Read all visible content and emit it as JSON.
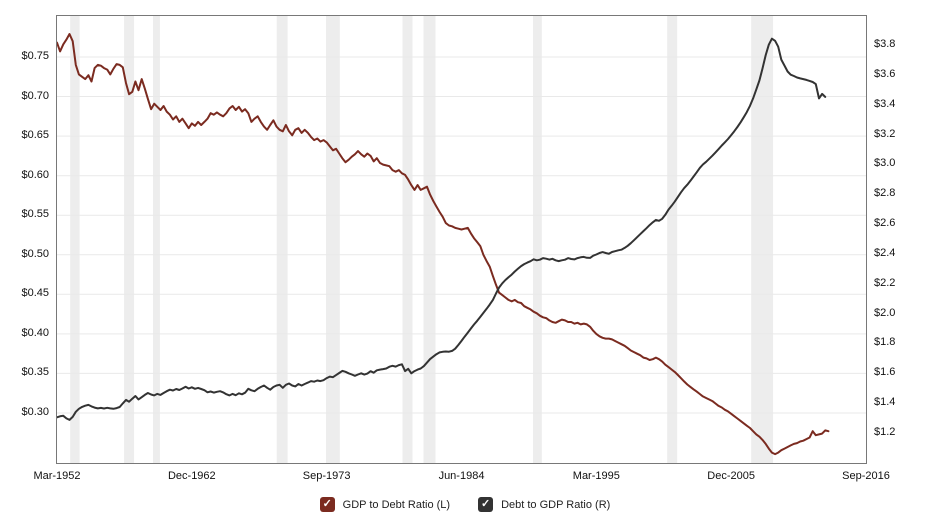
{
  "chart_data": {
    "type": "line",
    "title": "",
    "legend_position": "bottom-center",
    "grid": "horizontal-only",
    "background_color": "#ffffff",
    "grid_color": "#e9e9e9",
    "recession_band_color": "#ededed",
    "plot_border_color": "#787878",
    "x_axis": {
      "range": [
        1952.25,
        2016.75
      ],
      "tick_labels": [
        "Mar-1952",
        "Dec-1962",
        "Sep-1973",
        "Jun-1984",
        "Mar-1995",
        "Dec-2005",
        "Sep-2016"
      ],
      "tick_years": [
        1952.25,
        1963.0,
        1973.75,
        1984.5,
        1995.25,
        2006.0,
        2016.75
      ]
    },
    "left_axis": {
      "range": [
        0.2368,
        0.8018
      ],
      "tick_values": [
        0.3,
        0.35,
        0.4,
        0.45,
        0.5,
        0.55,
        0.6,
        0.65,
        0.7,
        0.75
      ],
      "tick_labels": [
        "$0.30",
        "$0.35",
        "$0.40",
        "$0.45",
        "$0.50",
        "$0.55",
        "$0.60",
        "$0.65",
        "$0.70",
        "$0.75"
      ]
    },
    "right_axis": {
      "range": [
        0.999,
        3.994
      ],
      "tick_values": [
        1.2,
        1.4,
        1.6,
        1.8,
        2.0,
        2.2,
        2.4,
        2.6,
        2.8,
        3.0,
        3.2,
        3.4,
        3.6,
        3.8
      ],
      "tick_labels": [
        "$1.2",
        "$1.4",
        "$1.6",
        "$1.8",
        "$2.0",
        "$2.2",
        "$2.4",
        "$2.6",
        "$2.8",
        "$3.0",
        "$3.2",
        "$3.4",
        "$3.6",
        "$3.8"
      ]
    },
    "recession_bands": [
      [
        1953.3,
        1954.05
      ],
      [
        1957.6,
        1958.4
      ],
      [
        1959.9,
        1960.45
      ],
      [
        1969.77,
        1970.64
      ],
      [
        1973.7,
        1974.8
      ],
      [
        1979.8,
        1980.6
      ],
      [
        1981.47,
        1982.43
      ],
      [
        1990.2,
        1990.9
      ],
      [
        2000.9,
        2001.7
      ],
      [
        2007.6,
        2009.35
      ]
    ],
    "series": [
      {
        "name": "GDP to Debt Ratio (L)",
        "axis": "left",
        "color": "#7b2b20",
        "line_width": 2,
        "start_year": 1952.25,
        "step_years": 0.25,
        "values": [
          0.768,
          0.757,
          0.766,
          0.772,
          0.779,
          0.77,
          0.74,
          0.728,
          0.725,
          0.722,
          0.727,
          0.719,
          0.736,
          0.74,
          0.739,
          0.736,
          0.734,
          0.728,
          0.735,
          0.741,
          0.74,
          0.737,
          0.717,
          0.703,
          0.706,
          0.719,
          0.708,
          0.722,
          0.71,
          0.697,
          0.684,
          0.691,
          0.687,
          0.683,
          0.688,
          0.681,
          0.677,
          0.671,
          0.675,
          0.668,
          0.672,
          0.666,
          0.66,
          0.666,
          0.663,
          0.668,
          0.664,
          0.668,
          0.672,
          0.679,
          0.677,
          0.68,
          0.677,
          0.675,
          0.679,
          0.685,
          0.688,
          0.683,
          0.687,
          0.681,
          0.684,
          0.679,
          0.668,
          0.672,
          0.675,
          0.668,
          0.662,
          0.658,
          0.664,
          0.67,
          0.662,
          0.658,
          0.656,
          0.664,
          0.656,
          0.651,
          0.658,
          0.66,
          0.654,
          0.658,
          0.654,
          0.649,
          0.645,
          0.647,
          0.643,
          0.645,
          0.642,
          0.637,
          0.632,
          0.634,
          0.628,
          0.622,
          0.617,
          0.62,
          0.624,
          0.627,
          0.631,
          0.627,
          0.624,
          0.628,
          0.625,
          0.618,
          0.622,
          0.616,
          0.614,
          0.613,
          0.612,
          0.607,
          0.605,
          0.607,
          0.603,
          0.601,
          0.595,
          0.588,
          0.582,
          0.588,
          0.582,
          0.584,
          0.586,
          0.576,
          0.568,
          0.561,
          0.554,
          0.548,
          0.54,
          0.537,
          0.536,
          0.534,
          0.533,
          0.532,
          0.533,
          0.534,
          0.527,
          0.521,
          0.516,
          0.511,
          0.5,
          0.492,
          0.485,
          0.473,
          0.462,
          0.452,
          0.449,
          0.446,
          0.443,
          0.441,
          0.443,
          0.44,
          0.439,
          0.435,
          0.433,
          0.431,
          0.428,
          0.426,
          0.423,
          0.421,
          0.42,
          0.417,
          0.415,
          0.414,
          0.416,
          0.418,
          0.417,
          0.415,
          0.415,
          0.413,
          0.414,
          0.412,
          0.413,
          0.412,
          0.409,
          0.404,
          0.4,
          0.397,
          0.395,
          0.394,
          0.394,
          0.393,
          0.391,
          0.389,
          0.387,
          0.385,
          0.382,
          0.379,
          0.377,
          0.375,
          0.373,
          0.37,
          0.369,
          0.367,
          0.368,
          0.37,
          0.368,
          0.365,
          0.361,
          0.358,
          0.355,
          0.352,
          0.348,
          0.344,
          0.34,
          0.336,
          0.333,
          0.33,
          0.327,
          0.324,
          0.321,
          0.319,
          0.317,
          0.315,
          0.312,
          0.309,
          0.307,
          0.304,
          0.302,
          0.299,
          0.296,
          0.293,
          0.29,
          0.287,
          0.284,
          0.281,
          0.277,
          0.273,
          0.27,
          0.266,
          0.261,
          0.255,
          0.25,
          0.248,
          0.25,
          0.253,
          0.255,
          0.257,
          0.259,
          0.261,
          0.262,
          0.264,
          0.265,
          0.267,
          0.269,
          0.277,
          0.272,
          0.273,
          0.274,
          0.278,
          0.277
        ]
      },
      {
        "name": "Debt to GDP Ratio (R)",
        "axis": "right",
        "color": "#333333",
        "line_width": 2,
        "start_year": 1952.25,
        "step_years": 0.25,
        "values": [
          1.305,
          1.312,
          1.315,
          1.298,
          1.288,
          1.308,
          1.342,
          1.362,
          1.375,
          1.383,
          1.388,
          1.378,
          1.37,
          1.365,
          1.368,
          1.364,
          1.369,
          1.365,
          1.362,
          1.367,
          1.374,
          1.398,
          1.422,
          1.41,
          1.43,
          1.448,
          1.425,
          1.44,
          1.455,
          1.468,
          1.458,
          1.452,
          1.462,
          1.455,
          1.468,
          1.48,
          1.49,
          1.485,
          1.495,
          1.488,
          1.498,
          1.51,
          1.498,
          1.506,
          1.496,
          1.502,
          1.495,
          1.487,
          1.473,
          1.478,
          1.471,
          1.476,
          1.48,
          1.472,
          1.46,
          1.452,
          1.462,
          1.453,
          1.466,
          1.459,
          1.47,
          1.496,
          1.486,
          1.48,
          1.496,
          1.508,
          1.518,
          1.503,
          1.49,
          1.508,
          1.518,
          1.523,
          1.503,
          1.523,
          1.532,
          1.518,
          1.512,
          1.528,
          1.518,
          1.528,
          1.538,
          1.548,
          1.544,
          1.552,
          1.548,
          1.554,
          1.568,
          1.578,
          1.574,
          1.588,
          1.602,
          1.616,
          1.61,
          1.6,
          1.592,
          1.583,
          1.592,
          1.6,
          1.591,
          1.598,
          1.614,
          1.604,
          1.62,
          1.625,
          1.628,
          1.632,
          1.644,
          1.65,
          1.645,
          1.655,
          1.66,
          1.615,
          1.63,
          1.6,
          1.615,
          1.625,
          1.632,
          1.648,
          1.672,
          1.695,
          1.712,
          1.728,
          1.74,
          1.744,
          1.746,
          1.745,
          1.75,
          1.765,
          1.79,
          1.817,
          1.845,
          1.873,
          1.9,
          1.927,
          1.952,
          1.978,
          2.005,
          2.032,
          2.06,
          2.092,
          2.135,
          2.175,
          2.203,
          2.225,
          2.243,
          2.261,
          2.282,
          2.3,
          2.318,
          2.332,
          2.342,
          2.351,
          2.364,
          2.357,
          2.361,
          2.372,
          2.368,
          2.362,
          2.367,
          2.357,
          2.352,
          2.357,
          2.361,
          2.372,
          2.366,
          2.363,
          2.372,
          2.377,
          2.38,
          2.374,
          2.373,
          2.388,
          2.396,
          2.406,
          2.412,
          2.406,
          2.401,
          2.413,
          2.418,
          2.424,
          2.428,
          2.44,
          2.454,
          2.472,
          2.492,
          2.512,
          2.532,
          2.553,
          2.572,
          2.593,
          2.612,
          2.628,
          2.622,
          2.635,
          2.662,
          2.697,
          2.722,
          2.75,
          2.782,
          2.813,
          2.84,
          2.864,
          2.89,
          2.918,
          2.947,
          2.976,
          2.999,
          3.017,
          3.037,
          3.058,
          3.08,
          3.102,
          3.126,
          3.148,
          3.17,
          3.196,
          3.222,
          3.25,
          3.282,
          3.315,
          3.35,
          3.392,
          3.442,
          3.502,
          3.562,
          3.642,
          3.732,
          3.802,
          3.842,
          3.828,
          3.788,
          3.702,
          3.662,
          3.622,
          3.601,
          3.592,
          3.582,
          3.576,
          3.571,
          3.566,
          3.559,
          3.552,
          3.538,
          3.442,
          3.472,
          3.452
        ]
      }
    ]
  },
  "legend": {
    "items": [
      {
        "label": "GDP to Debt Ratio (L)",
        "checked": true,
        "color": "#7b2b20",
        "check_glyph": "✓"
      },
      {
        "label": "Debt to GDP Ratio (R)",
        "checked": true,
        "color": "#333333",
        "check_glyph": "✓"
      }
    ]
  }
}
